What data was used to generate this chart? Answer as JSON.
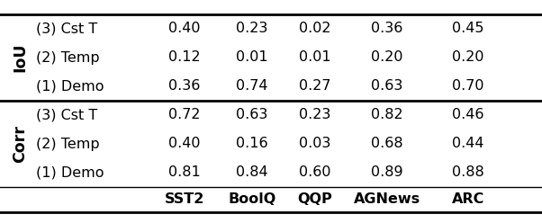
{
  "col_headers": [
    "SST2",
    "BoolQ",
    "QQP",
    "AGNews",
    "ARC"
  ],
  "row_group_labels": [
    "Corr",
    "IoU"
  ],
  "row_labels": [
    [
      "(1) Demo",
      "(2) Temp",
      "(3) Cst T"
    ],
    [
      "(1) Demo",
      "(2) Temp",
      "(3) Cst T"
    ]
  ],
  "data": [
    [
      "0.81",
      "0.84",
      "0.60",
      "0.89",
      "0.88"
    ],
    [
      "0.40",
      "0.16",
      "0.03",
      "0.68",
      "0.44"
    ],
    [
      "0.72",
      "0.63",
      "0.23",
      "0.82",
      "0.46"
    ],
    [
      "0.36",
      "0.74",
      "0.27",
      "0.63",
      "0.70"
    ],
    [
      "0.12",
      "0.01",
      "0.01",
      "0.20",
      "0.20"
    ],
    [
      "0.40",
      "0.23",
      "0.02",
      "0.36",
      "0.45"
    ]
  ],
  "bg_color": "#ffffff",
  "text_color": "#000000",
  "header_fontsize": 11.5,
  "cell_fontsize": 11.5,
  "group_label_fontsize": 12.5,
  "fig_width": 6.02,
  "fig_height": 2.48,
  "dpi": 100
}
